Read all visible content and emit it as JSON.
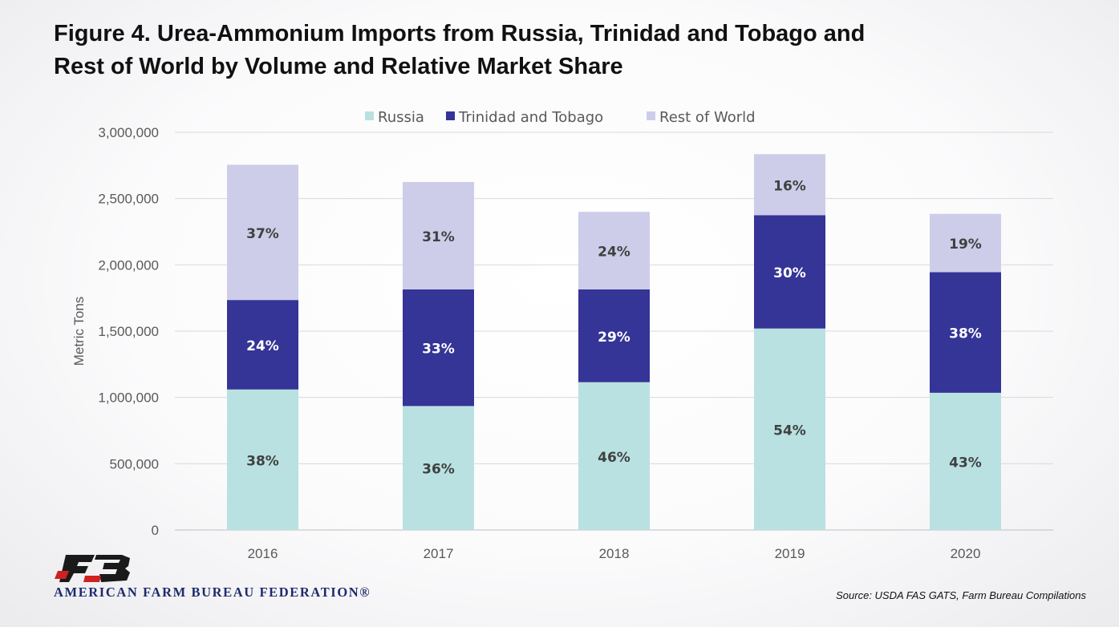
{
  "title_line1": "Figure 4. Urea-Ammonium Imports from Russia, Trinidad and Tobago and",
  "title_line2": "Rest of World by Volume and Relative Market Share",
  "organization": "AMERICAN FARM BUREAU FEDERATION®",
  "source": "Source: USDA FAS GATS, Farm Bureau Compilations",
  "colors": {
    "russia": "#b9e1e1",
    "trinidad": "#353497",
    "rest": "#cdcdea"
  },
  "chart_data": {
    "type": "bar",
    "stacked": true,
    "categories": [
      "2016",
      "2017",
      "2018",
      "2019",
      "2020"
    ],
    "series": [
      {
        "name": "Russia",
        "values": [
          1060000,
          935000,
          1115000,
          1520000,
          1035000
        ],
        "labels": [
          "38%",
          "36%",
          "46%",
          "54%",
          "43%"
        ],
        "color": "#b9e1e1"
      },
      {
        "name": "Trinidad and Tobago",
        "values": [
          675000,
          880000,
          700000,
          855000,
          910000
        ],
        "labels": [
          "24%",
          "33%",
          "29%",
          "30%",
          "38%"
        ],
        "color": "#353497"
      },
      {
        "name": "Rest of World",
        "values": [
          1020000,
          810000,
          585000,
          460000,
          440000
        ],
        "labels": [
          "37%",
          "31%",
          "24%",
          "16%",
          "19%"
        ],
        "color": "#cdcdea"
      }
    ],
    "ylabel": "Metric Tons",
    "xlabel": "",
    "ylim": [
      0,
      3000000
    ],
    "yticks": [
      "0",
      "500,000",
      "1,000,000",
      "1,500,000",
      "2,000,000",
      "2,500,000",
      "3,000,000"
    ],
    "grid": true,
    "legend": "top"
  }
}
